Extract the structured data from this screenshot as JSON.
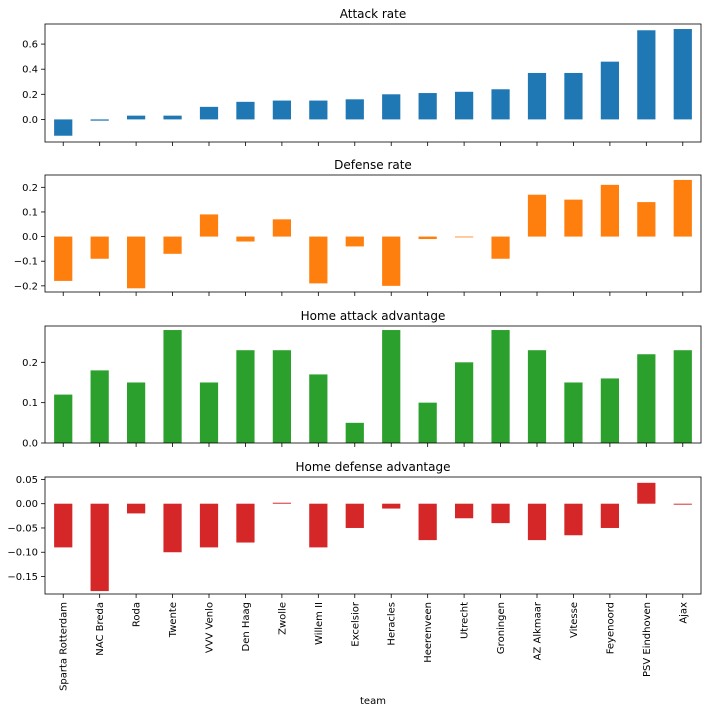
{
  "chart_data": {
    "type": "bar",
    "xlabel": "team",
    "categories": [
      "Sparta Rotterdam",
      "NAC Breda",
      "Roda",
      "Twente",
      "VVV Venlo",
      "Den Haag",
      "Zwolle",
      "Willem II",
      "Excelsior",
      "Heracles",
      "Heerenveen",
      "Utrecht",
      "Groningen",
      "AZ Alkmaar",
      "Vitesse",
      "Feyenoord",
      "PSV Eindhoven",
      "Ajax"
    ],
    "panels": [
      {
        "title": "Attack rate",
        "color": "#1f77b4",
        "values": [
          -0.13,
          -0.01,
          0.03,
          0.03,
          0.1,
          0.14,
          0.15,
          0.15,
          0.16,
          0.2,
          0.21,
          0.22,
          0.24,
          0.37,
          0.37,
          0.46,
          0.71,
          0.72
        ],
        "ylim": [
          -0.18,
          0.76
        ],
        "yticks": [
          0.0,
          0.2,
          0.4,
          0.6
        ],
        "ytick_labels": [
          "0.0",
          "0.2",
          "0.4",
          "0.6"
        ]
      },
      {
        "title": "Defense rate",
        "color": "#ff7f0e",
        "values": [
          -0.18,
          -0.09,
          -0.21,
          -0.07,
          0.09,
          -0.02,
          0.07,
          -0.19,
          -0.04,
          -0.2,
          -0.01,
          0.0,
          -0.09,
          0.17,
          0.15,
          0.21,
          0.14,
          0.23
        ],
        "ylim": [
          -0.225,
          0.25
        ],
        "yticks": [
          -0.2,
          -0.1,
          0.0,
          0.1,
          0.2
        ],
        "ytick_labels": [
          "−0.2",
          "−0.1",
          "0.0",
          "0.1",
          "0.2"
        ]
      },
      {
        "title": "Home attack advantage",
        "color": "#2ca02c",
        "values": [
          0.12,
          0.18,
          0.15,
          0.28,
          0.15,
          0.23,
          0.23,
          0.17,
          0.05,
          0.28,
          0.1,
          0.2,
          0.28,
          0.23,
          0.15,
          0.16,
          0.22,
          0.23
        ],
        "ylim": [
          0.0,
          0.29
        ],
        "yticks": [
          0.0,
          0.1,
          0.2
        ],
        "ytick_labels": [
          "0.0",
          "0.1",
          "0.2"
        ]
      },
      {
        "title": "Home defense advantage",
        "color": "#d62728",
        "values": [
          -0.09,
          -0.18,
          -0.02,
          -0.1,
          -0.09,
          -0.08,
          0.002,
          -0.09,
          -0.05,
          -0.01,
          -0.075,
          -0.03,
          -0.04,
          -0.075,
          -0.065,
          -0.05,
          0.043,
          -0.002
        ],
        "ylim": [
          -0.186,
          0.055
        ],
        "yticks": [
          -0.15,
          -0.1,
          -0.05,
          0.0,
          0.05
        ],
        "ytick_labels": [
          "−0.15",
          "−0.10",
          "−0.05",
          "0.00",
          "0.05"
        ]
      }
    ]
  }
}
